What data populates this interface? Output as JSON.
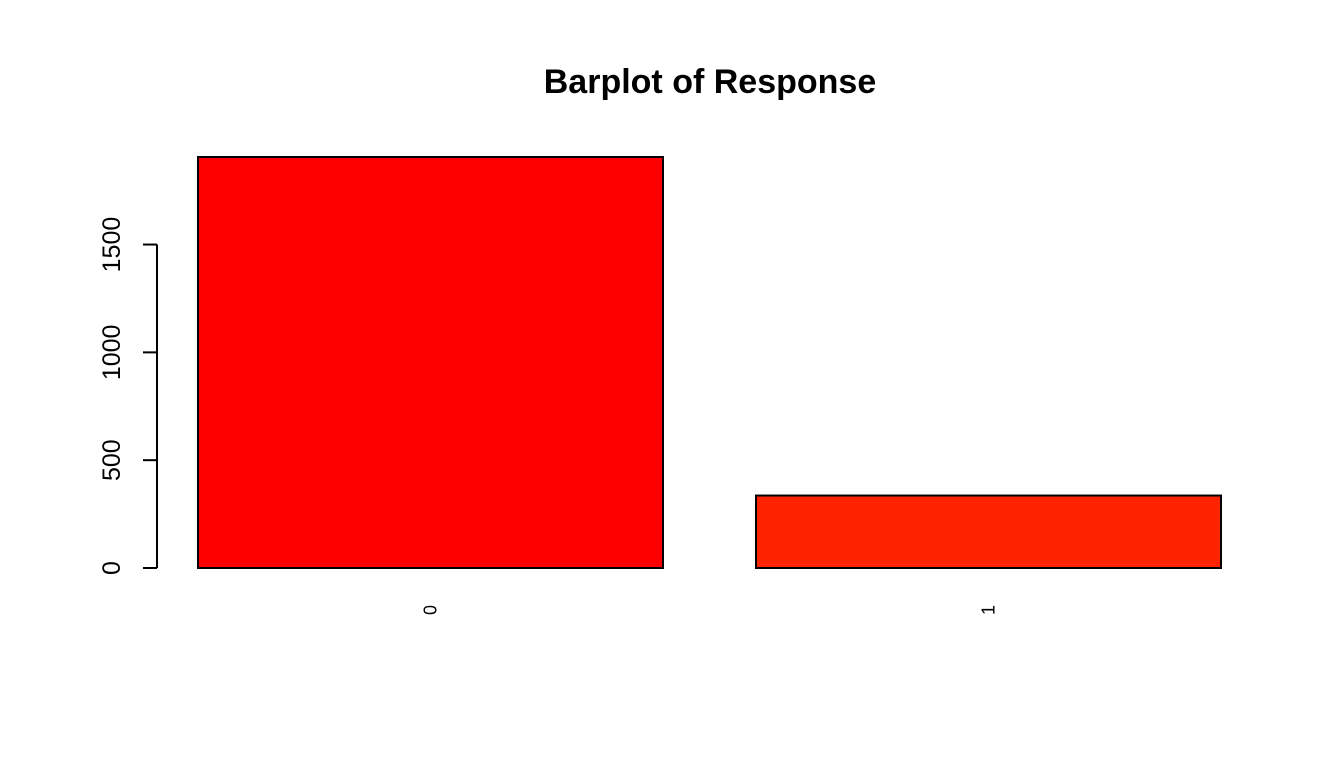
{
  "chart_data": {
    "type": "bar",
    "title": "Barplot of Response",
    "xlabel": "",
    "ylabel": "",
    "categories": [
      "0",
      "1"
    ],
    "values": [
      1906,
      336
    ],
    "colors": [
      "#ff0000",
      "#ff2400"
    ],
    "border_color": "#000000",
    "ylim": [
      0,
      1906
    ],
    "y_ticks": [
      0,
      500,
      1000,
      1500
    ],
    "y_tick_labels": [
      "0",
      "500",
      "1000",
      "1500"
    ],
    "x_tick_labels_rotated": true,
    "grid": false,
    "legend": "none"
  }
}
